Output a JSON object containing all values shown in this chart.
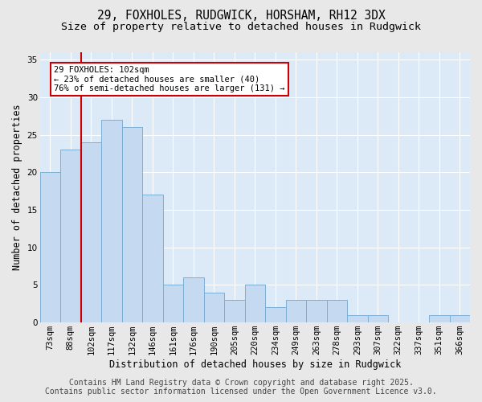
{
  "title": "29, FOXHOLES, RUDGWICK, HORSHAM, RH12 3DX",
  "subtitle": "Size of property relative to detached houses in Rudgwick",
  "xlabel": "Distribution of detached houses by size in Rudgwick",
  "ylabel": "Number of detached properties",
  "categories": [
    "73sqm",
    "88sqm",
    "102sqm",
    "117sqm",
    "132sqm",
    "146sqm",
    "161sqm",
    "176sqm",
    "190sqm",
    "205sqm",
    "220sqm",
    "234sqm",
    "249sqm",
    "263sqm",
    "278sqm",
    "293sqm",
    "307sqm",
    "322sqm",
    "337sqm",
    "351sqm",
    "366sqm"
  ],
  "values": [
    20,
    23,
    24,
    27,
    26,
    17,
    5,
    6,
    4,
    3,
    5,
    2,
    3,
    3,
    3,
    1,
    1,
    0,
    0,
    1,
    1
  ],
  "bar_color": "#c5d9f1",
  "bar_edge_color": "#7bafd4",
  "bg_color": "#dce9f7",
  "grid_color": "#ffffff",
  "vline_x": 1.5,
  "vline_color": "#cc0000",
  "annotation_text": "29 FOXHOLES: 102sqm\n← 23% of detached houses are smaller (40)\n76% of semi-detached houses are larger (131) →",
  "annotation_box_color": "#ffffff",
  "annotation_box_edge": "#cc0000",
  "footer_line1": "Contains HM Land Registry data © Crown copyright and database right 2025.",
  "footer_line2": "Contains public sector information licensed under the Open Government Licence v3.0.",
  "ylim": [
    0,
    36
  ],
  "yticks": [
    0,
    5,
    10,
    15,
    20,
    25,
    30,
    35
  ],
  "title_fontsize": 10.5,
  "subtitle_fontsize": 9.5,
  "axis_label_fontsize": 8.5,
  "tick_fontsize": 7.5,
  "footer_fontsize": 7
}
